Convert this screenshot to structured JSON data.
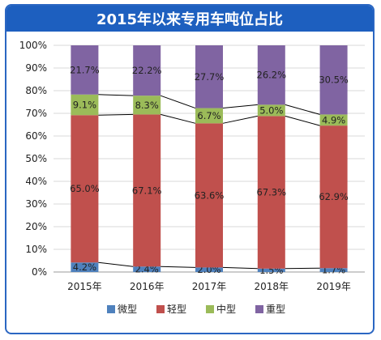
{
  "chart_data": {
    "type": "bar",
    "stacked": true,
    "percent": true,
    "title": "2015年以来专用车吨位占比",
    "categories": [
      "2015年",
      "2016年",
      "2017年",
      "2018年",
      "2019年"
    ],
    "series": [
      {
        "name": "微型",
        "color": "#4f81bd",
        "values": [
          4.2,
          2.4,
          2.0,
          1.5,
          1.7
        ],
        "labels": [
          "4.2%",
          "2.4%",
          "2.0%",
          "1.5%",
          "1.7%"
        ]
      },
      {
        "name": "轻型",
        "color": "#c0504d",
        "values": [
          65.0,
          67.1,
          63.6,
          67.3,
          62.9
        ],
        "labels": [
          "65.0%",
          "67.1%",
          "63.6%",
          "67.3%",
          "62.9%"
        ]
      },
      {
        "name": "中型",
        "color": "#9bbb59",
        "values": [
          9.1,
          8.3,
          6.7,
          5.0,
          4.9
        ],
        "labels": [
          "9.1%",
          "8.3%",
          "6.7%",
          "5.0%",
          "4.9%"
        ]
      },
      {
        "name": "重型",
        "color": "#8064a2",
        "values": [
          21.7,
          22.2,
          27.7,
          26.2,
          30.5
        ],
        "labels": [
          "21.7%",
          "22.2%",
          "27.7%",
          "26.2%",
          "30.5%"
        ]
      }
    ],
    "yticks": [
      "0%",
      "10%",
      "20%",
      "30%",
      "40%",
      "50%",
      "60%",
      "70%",
      "80%",
      "90%",
      "100%"
    ],
    "ylim": [
      0,
      100
    ],
    "series_lines": true,
    "legend": "bottom"
  }
}
